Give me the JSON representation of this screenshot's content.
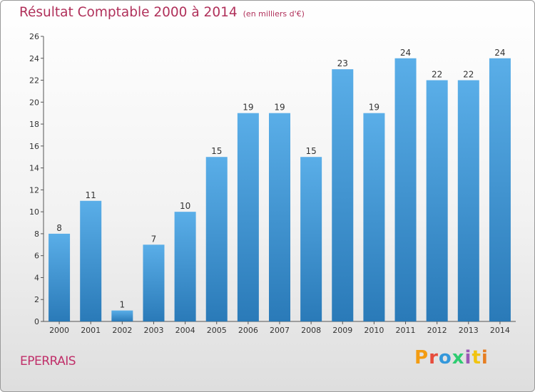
{
  "title": "Résultat Comptable 2000 à 2014",
  "subtitle": "(en milliers d'€)",
  "commune": "EPERRAIS",
  "logo": {
    "text": "Proxiti",
    "colors": [
      "#f39c12",
      "#e74c3c",
      "#3498db",
      "#2ecc71",
      "#9b59b6",
      "#f1c40f",
      "#e67e22"
    ]
  },
  "colors": {
    "bar_top": "#5aaee8",
    "bar_bottom": "#2a7ab8",
    "title": "#b0305a"
  },
  "chart_data": {
    "type": "bar",
    "categories": [
      "2000",
      "2001",
      "2002",
      "2003",
      "2004",
      "2005",
      "2006",
      "2007",
      "2008",
      "2009",
      "2010",
      "2011",
      "2012",
      "2013",
      "2014"
    ],
    "values": [
      8,
      11,
      1,
      7,
      10,
      15,
      19,
      19,
      15,
      23,
      19,
      24,
      22,
      22,
      24
    ],
    "ylim": [
      0,
      26
    ],
    "yticks": [
      0,
      2,
      4,
      6,
      8,
      10,
      12,
      14,
      16,
      18,
      20,
      22,
      24,
      26
    ],
    "grid": false,
    "data_labels": true
  }
}
